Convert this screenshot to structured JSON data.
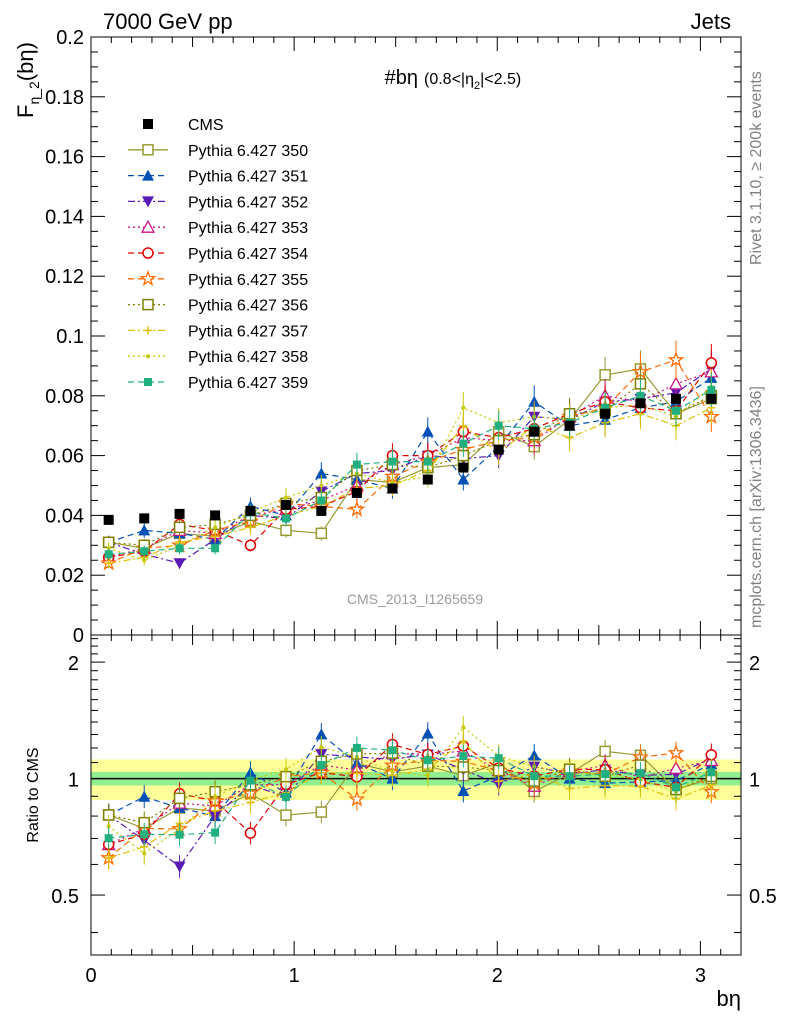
{
  "header": {
    "energy": "7000 GeV pp",
    "process": "Jets",
    "plot_title": "#bη",
    "plot_title_cut": "(0.8<|η",
    "plot_title_cut_sub": "2",
    "plot_title_cut_end": "|<2.5)",
    "analysis_id": "CMS_2013_I1265659",
    "side_top": "Rivet 3.1.10, ≥ 200k events",
    "side_bottom": "mcplots.cern.ch [arXiv:1306.3436]"
  },
  "axes": {
    "ylabel_main": "F",
    "ylabel_main_sub": "η_2",
    "ylabel_main_paren": "(bη)",
    "ylabel_ratio": "Ratio to CMS",
    "xlabel": "bη",
    "x_ticks": [
      "0",
      "1",
      "2",
      "3"
    ],
    "y_ticks_main": [
      "0",
      "0.02",
      "0.04",
      "0.06",
      "0.08",
      "0.1",
      "0.12",
      "0.14",
      "0.16",
      "0.18",
      "0.2"
    ],
    "y_ticks_ratio": [
      "0.5",
      "1",
      "2"
    ]
  },
  "chart_data": {
    "type": "scatter",
    "xlim": [
      0,
      3.2
    ],
    "ylim_main": [
      0,
      0.2
    ],
    "ylim_ratio": [
      0.35,
      2.35
    ],
    "ratio_log_scale": true,
    "legend_position": "top-left",
    "x": [
      0.087,
      0.262,
      0.436,
      0.611,
      0.785,
      0.96,
      1.134,
      1.309,
      1.484,
      1.658,
      1.833,
      2.007,
      2.182,
      2.356,
      2.531,
      2.705,
      2.88,
      3.054
    ],
    "cms": {
      "name": "CMS",
      "values": [
        0.0385,
        0.039,
        0.0405,
        0.04,
        0.0415,
        0.0435,
        0.0415,
        0.0475,
        0.049,
        0.052,
        0.056,
        0.062,
        0.068,
        0.07,
        0.074,
        0.0775,
        0.079,
        0.079
      ]
    },
    "band_inner": 0.04,
    "band_outer": 0.12,
    "series": [
      {
        "name": "Pythia 6.427 350",
        "color": "#999933",
        "marker": "open-square",
        "line": "solid",
        "values": [
          0.031,
          0.029,
          0.034,
          0.033,
          0.038,
          0.035,
          0.034,
          0.052,
          0.051,
          0.056,
          0.057,
          0.068,
          0.063,
          0.072,
          0.087,
          0.089,
          0.074,
          0.079
        ]
      },
      {
        "name": "Pythia 6.427 351",
        "color": "#0050b5",
        "marker": "filled-triangle-up",
        "line": "dashed",
        "values": [
          0.031,
          0.035,
          0.034,
          0.032,
          0.043,
          0.04,
          0.054,
          0.052,
          0.049,
          0.068,
          0.052,
          0.063,
          0.078,
          0.07,
          0.072,
          0.076,
          0.078,
          0.086
        ]
      },
      {
        "name": "Pythia 6.427 352",
        "color": "#5a1ab4",
        "marker": "filled-triangle-down",
        "line": "dashdot",
        "values": [
          0.031,
          0.027,
          0.024,
          0.032,
          0.04,
          0.039,
          0.048,
          0.054,
          0.055,
          0.06,
          0.059,
          0.06,
          0.073,
          0.072,
          0.078,
          0.079,
          0.081,
          0.089
        ]
      },
      {
        "name": "Pythia 6.427 353",
        "color": "#c71585",
        "marker": "open-triangle-up",
        "line": "dotted",
        "values": [
          0.026,
          0.029,
          0.035,
          0.034,
          0.04,
          0.042,
          0.045,
          0.05,
          0.057,
          0.06,
          0.066,
          0.065,
          0.065,
          0.073,
          0.08,
          0.078,
          0.084,
          0.088
        ]
      },
      {
        "name": "Pythia 6.427 354",
        "color": "#e00000",
        "marker": "open-circle",
        "line": "dashed",
        "values": [
          0.026,
          0.028,
          0.037,
          0.035,
          0.03,
          0.042,
          0.043,
          0.048,
          0.06,
          0.06,
          0.068,
          0.066,
          0.069,
          0.074,
          0.078,
          0.076,
          0.075,
          0.091
        ]
      },
      {
        "name": "Pythia 6.427 355",
        "color": "#ff6a00",
        "marker": "open-star",
        "line": "dashed",
        "values": [
          0.024,
          0.029,
          0.03,
          0.035,
          0.038,
          0.044,
          0.043,
          0.042,
          0.053,
          0.058,
          0.062,
          0.065,
          0.066,
          0.073,
          0.076,
          0.088,
          0.092,
          0.073
        ]
      },
      {
        "name": "Pythia 6.427 356",
        "color": "#808000",
        "marker": "open-square",
        "line": "dotted",
        "values": [
          0.031,
          0.03,
          0.036,
          0.037,
          0.04,
          0.044,
          0.046,
          0.055,
          0.057,
          0.056,
          0.06,
          0.065,
          0.067,
          0.074,
          0.075,
          0.084,
          0.074,
          0.08
        ]
      },
      {
        "name": "Pythia 6.427 357",
        "color": "#e0c000",
        "marker": "cross",
        "line": "dashdot",
        "values": [
          0.024,
          0.026,
          0.031,
          0.033,
          0.036,
          0.04,
          0.043,
          0.049,
          0.05,
          0.055,
          0.07,
          0.061,
          0.07,
          0.066,
          0.071,
          0.074,
          0.07,
          0.076
        ]
      },
      {
        "name": "Pythia 6.427 358",
        "color": "#c8c800",
        "marker": "dot",
        "line": "dotted",
        "values": [
          0.029,
          0.025,
          0.03,
          0.036,
          0.041,
          0.046,
          0.05,
          0.054,
          0.051,
          0.053,
          0.076,
          0.071,
          0.073,
          0.072,
          0.076,
          0.077,
          0.073,
          0.083
        ]
      },
      {
        "name": "Pythia 6.427 359",
        "color": "#20b080",
        "marker": "filled-square",
        "line": "dashed",
        "values": [
          0.027,
          0.028,
          0.029,
          0.029,
          0.041,
          0.039,
          0.045,
          0.057,
          0.058,
          0.058,
          0.064,
          0.07,
          0.069,
          0.071,
          0.076,
          0.08,
          0.075,
          0.082
        ]
      }
    ]
  }
}
